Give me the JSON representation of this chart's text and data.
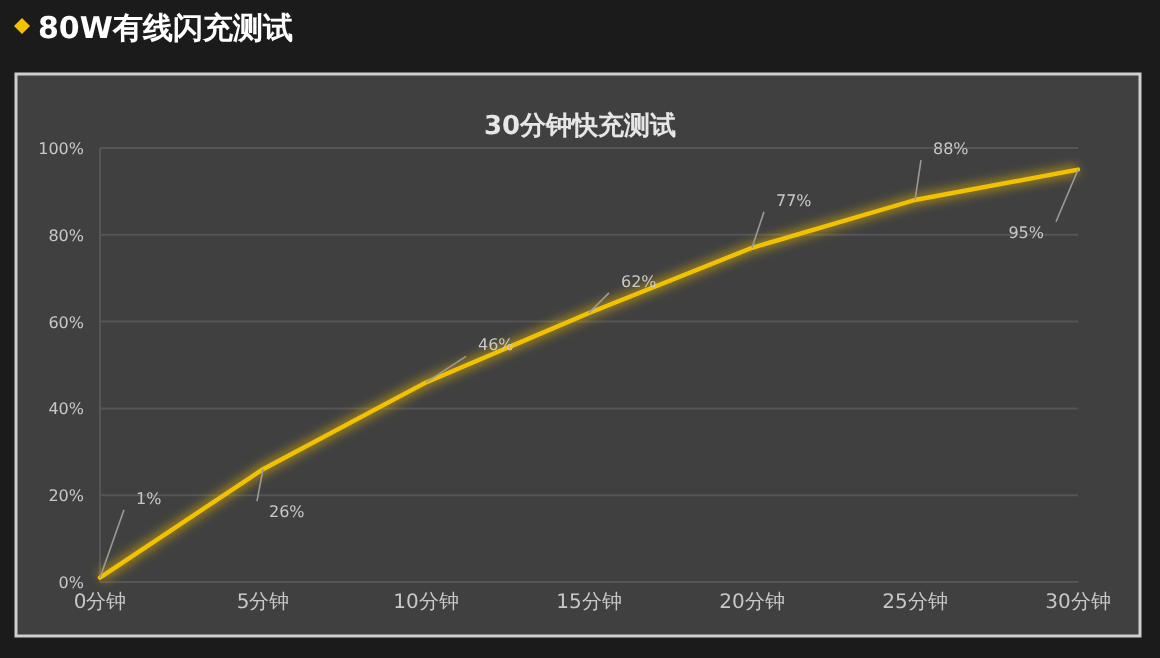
{
  "chart_data": {
    "type": "line",
    "title": "80W有线闪充测试",
    "subtitle": "30分钟快充测试",
    "categories": [
      "0分钟",
      "5分钟",
      "10分钟",
      "15分钟",
      "20分钟",
      "25分钟",
      "30分钟"
    ],
    "series": [
      {
        "color": "#f2c200",
        "values": [
          1,
          26,
          46,
          62,
          77,
          88,
          95
        ]
      }
    ],
    "value_labels": [
      "1%",
      "26%",
      "46%",
      "62%",
      "77%",
      "88%",
      "95%"
    ],
    "ylim": [
      0,
      100
    ],
    "yticks": [
      {
        "value": 0,
        "label": "0%"
      },
      {
        "value": 20,
        "label": "20%"
      },
      {
        "value": 40,
        "label": "40%"
      },
      {
        "value": 60,
        "label": "60%"
      },
      {
        "value": 80,
        "label": "80%"
      },
      {
        "value": 100,
        "label": "100%"
      }
    ],
    "grid": "y",
    "marker": "none",
    "line_style": "solid"
  }
}
